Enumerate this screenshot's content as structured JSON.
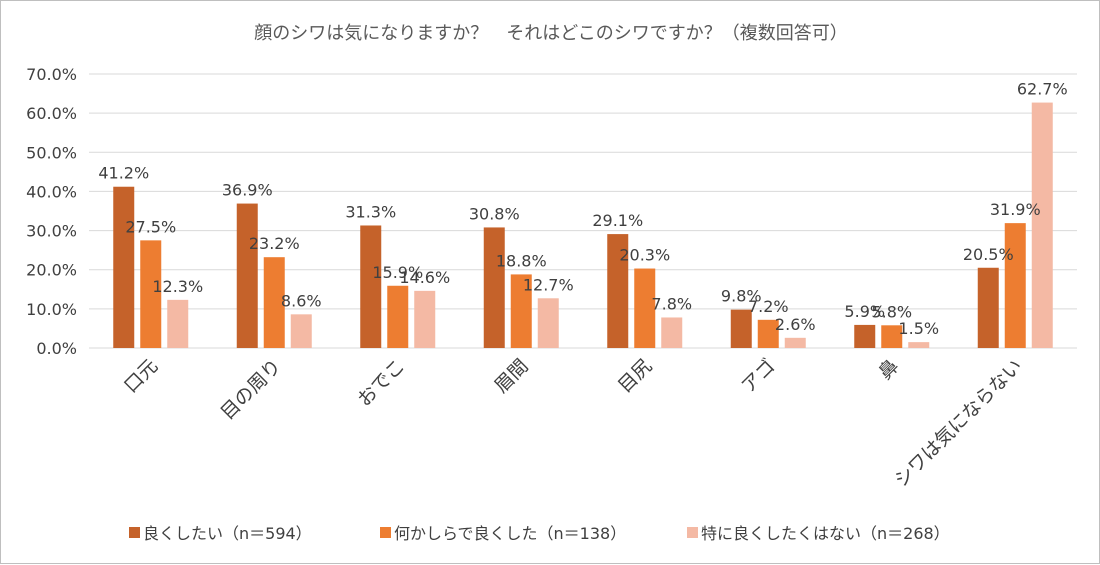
{
  "chart_data": {
    "type": "bar",
    "title": "顔のシワは気になりますか？　それはどこのシワですか？（複数回答可）",
    "categories": [
      "口元",
      "目の周り",
      "おでこ",
      "眉間",
      "目尻",
      "アゴ",
      "鼻",
      "シワは気にならない"
    ],
    "series": [
      {
        "name": "良くしたい（n＝594）",
        "color": "#c5622a",
        "values": [
          41.2,
          36.9,
          31.3,
          30.8,
          29.1,
          9.8,
          5.9,
          20.5
        ],
        "labels": [
          "41.2%",
          "36.9%",
          "31.3%",
          "30.8%",
          "29.1%",
          "9.8%",
          "5.9%",
          "20.5%"
        ]
      },
      {
        "name": "何かしらで良くした（n＝138）",
        "color": "#ed7d31",
        "values": [
          27.5,
          23.2,
          15.9,
          18.8,
          20.3,
          7.2,
          5.8,
          31.9
        ],
        "labels": [
          "27.5%",
          "23.2%",
          "15.9%",
          "18.8%",
          "20.3%",
          "7.2%",
          "5.8%",
          "31.9%"
        ]
      },
      {
        "name": "特に良くしたくはない（n＝268）",
        "color": "#f4b9a4",
        "values": [
          12.3,
          8.6,
          14.6,
          12.7,
          7.8,
          2.6,
          1.5,
          62.7
        ],
        "labels": [
          "12.3%",
          "8.6%",
          "14.6%",
          "12.7%",
          "7.8%",
          "2.6%",
          "1.5%",
          "62.7%"
        ]
      }
    ],
    "ylim": [
      0,
      70
    ],
    "yticks": [
      "0.0%",
      "10.0%",
      "20.0%",
      "30.0%",
      "40.0%",
      "50.0%",
      "60.0%",
      "70.0%"
    ],
    "ytick_values": [
      0,
      10,
      20,
      30,
      40,
      50,
      60,
      70
    ],
    "grid": true,
    "legend": "bottom"
  }
}
